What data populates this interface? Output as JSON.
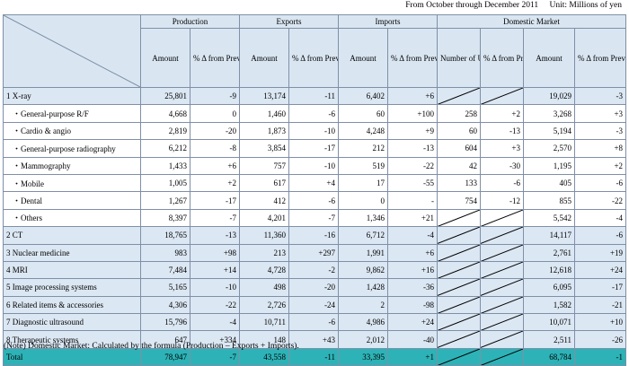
{
  "header": {
    "period": "From October through December 2011",
    "unit": "Unit: Millions of yen"
  },
  "columns": {
    "groups": [
      "Production",
      "Exports",
      "Imports",
      "Domestic Market"
    ],
    "amount": "Amount",
    "change": "% Δ from Previous Year",
    "units": "Number of Units"
  },
  "rows": [
    {
      "label": "1 X-ray",
      "kind": "cat",
      "v": [
        "25,801",
        "-9",
        "13,174",
        "-11",
        "6,402",
        "+6",
        null,
        null,
        "19,029",
        "-3"
      ]
    },
    {
      "label": "・General-purpose R/F",
      "kind": "sub",
      "v": [
        "4,668",
        "0",
        "1,460",
        "-6",
        "60",
        "+100",
        "258",
        "+2",
        "3,268",
        "+3"
      ]
    },
    {
      "label": "・Cardio & angio",
      "kind": "sub",
      "v": [
        "2,819",
        "-20",
        "1,873",
        "-10",
        "4,248",
        "+9",
        "60",
        "-13",
        "5,194",
        "-3"
      ]
    },
    {
      "label": "・General-purpose radiography",
      "kind": "sub",
      "v": [
        "6,212",
        "-8",
        "3,854",
        "-17",
        "212",
        "-13",
        "604",
        "+3",
        "2,570",
        "+8"
      ]
    },
    {
      "label": "・Mammography",
      "kind": "sub",
      "v": [
        "1,433",
        "+6",
        "757",
        "-10",
        "519",
        "-22",
        "42",
        "-30",
        "1,195",
        "+2"
      ]
    },
    {
      "label": "・Mobile",
      "kind": "sub",
      "v": [
        "1,005",
        "+2",
        "617",
        "+4",
        "17",
        "-55",
        "133",
        "-6",
        "405",
        "-6"
      ]
    },
    {
      "label": "・Dental",
      "kind": "sub",
      "v": [
        "1,267",
        "-17",
        "412",
        "-6",
        "0",
        "-",
        "754",
        "-12",
        "855",
        "-22"
      ]
    },
    {
      "label": "・Others",
      "kind": "sub",
      "v": [
        "8,397",
        "-7",
        "4,201",
        "-7",
        "1,346",
        "+21",
        null,
        null,
        "5,542",
        "-4"
      ]
    },
    {
      "label": "2 CT",
      "kind": "cat",
      "v": [
        "18,765",
        "-13",
        "11,360",
        "-16",
        "6,712",
        "-4",
        null,
        null,
        "14,117",
        "-6"
      ]
    },
    {
      "label": "3 Nuclear medicine",
      "kind": "cat",
      "v": [
        "983",
        "+98",
        "213",
        "+297",
        "1,991",
        "+6",
        null,
        null,
        "2,761",
        "+19"
      ]
    },
    {
      "label": "4 MRI",
      "kind": "cat",
      "v": [
        "7,484",
        "+14",
        "4,728",
        "-2",
        "9,862",
        "+16",
        null,
        null,
        "12,618",
        "+24"
      ]
    },
    {
      "label": "5 Image processing systems",
      "kind": "cat",
      "v": [
        "5,165",
        "-10",
        "498",
        "-20",
        "1,428",
        "-36",
        null,
        null,
        "6,095",
        "-17"
      ]
    },
    {
      "label": "6 Related items & accessories",
      "kind": "cat",
      "v": [
        "4,306",
        "-22",
        "2,726",
        "-24",
        "2",
        "-98",
        null,
        null,
        "1,582",
        "-21"
      ]
    },
    {
      "label": "7 Diagnostic ultrasound",
      "kind": "cat",
      "v": [
        "15,796",
        "-4",
        "10,711",
        "-6",
        "4,986",
        "+24",
        null,
        null,
        "10,071",
        "+10"
      ]
    },
    {
      "label": "8 Therapeutic systems",
      "kind": "cat",
      "v": [
        "647",
        "+334",
        "148",
        "+43",
        "2,012",
        "-40",
        null,
        null,
        "2,511",
        "-26"
      ]
    },
    {
      "label": "Total",
      "kind": "total",
      "v": [
        "78,947",
        "-7",
        "43,558",
        "-11",
        "33,395",
        "+1",
        null,
        null,
        "68,784",
        "-1"
      ]
    }
  ],
  "note": "(Note) Domestic Market: Calculated by the formula (Production – Exports + Imports).",
  "colors": {
    "header_bg": "#d9e6f2",
    "category_row_bg": "#dbe7f3",
    "total_row_bg": "#2db3b7",
    "border": "#7f8fa6"
  }
}
